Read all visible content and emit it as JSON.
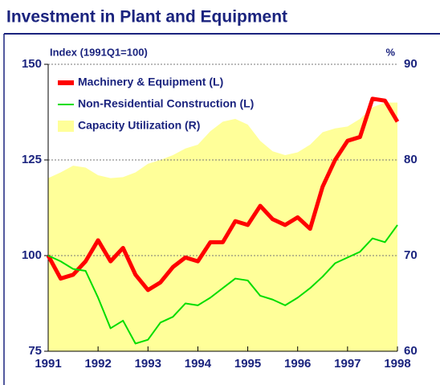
{
  "chart_data": {
    "type": "line",
    "title": "Investment in Plant and Equipment",
    "y_label": "Index (1991Q1=100)",
    "y2_label": "%",
    "x": [
      1991,
      1991.25,
      1991.5,
      1991.75,
      1992,
      1992.25,
      1992.5,
      1992.75,
      1993,
      1993.25,
      1993.5,
      1993.75,
      1994,
      1994.25,
      1994.5,
      1994.75,
      1995,
      1995.25,
      1995.5,
      1995.75,
      1996,
      1996.25,
      1996.5,
      1996.75,
      1997,
      1997.25,
      1997.5,
      1997.75,
      1998
    ],
    "xlim": [
      1991,
      1998
    ],
    "xticks": [
      1991,
      1992,
      1993,
      1994,
      1995,
      1996,
      1997,
      1998
    ],
    "ylim": [
      75,
      150
    ],
    "yticks": [
      75,
      100,
      125,
      150
    ],
    "y2lim": [
      60,
      90
    ],
    "y2ticks": [
      60,
      70,
      80,
      90
    ],
    "grid": true,
    "legend": "upper left",
    "series": [
      {
        "name": "Machinery & Equipment (L)",
        "color": "#ff0000",
        "style": "line",
        "values": [
          100,
          94,
          95,
          98.5,
          104,
          98.5,
          102,
          95,
          91,
          93,
          97,
          99.5,
          98.5,
          103.5,
          103.5,
          109,
          108,
          113,
          109.5,
          108,
          110,
          107,
          118,
          125,
          130,
          131,
          141,
          140.5,
          135
        ]
      },
      {
        "name": "Non-Residential Construction (L)",
        "color": "#00dd00",
        "style": "line",
        "values": [
          100,
          98.5,
          96.5,
          96,
          89,
          81,
          83,
          77,
          78,
          82.5,
          84,
          87.5,
          87,
          89,
          91.5,
          94,
          93.5,
          89.5,
          88.5,
          87,
          89,
          91.5,
          94.5,
          98,
          99.5,
          101,
          104.5,
          103.5,
          108
        ]
      },
      {
        "name": "Capacity Utilization (R)",
        "color": "#ffff99",
        "style": "area",
        "axis": "y2",
        "values": [
          78.1,
          78.7,
          79.4,
          79.2,
          78.4,
          78.1,
          78.2,
          78.7,
          79.6,
          80,
          80.5,
          81.2,
          81.6,
          83,
          84,
          84.3,
          83.7,
          82,
          80.9,
          80.5,
          80.8,
          81.6,
          82.9,
          83.3,
          83.5,
          84.3,
          85.5,
          86,
          86
        ]
      }
    ]
  }
}
